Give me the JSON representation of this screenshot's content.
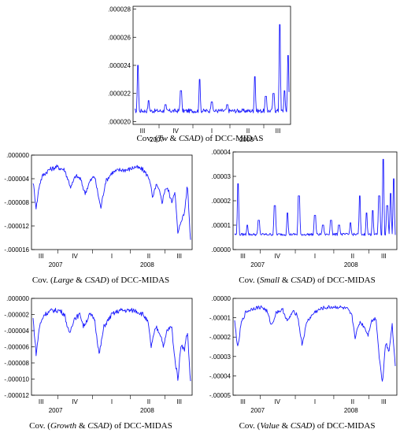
{
  "chart_data": [
    {
      "type": "line",
      "caption_pre": "Cov. (",
      "caption_it1": "Tw",
      "caption_mid": " & ",
      "caption_it2": "CSAD",
      "caption_post": ") of DCC-MIDAS",
      "color": "#1a1aff",
      "ylim": [
        1.98e-05,
        2.82e-05
      ],
      "ytick_values": [
        2e-05,
        2.2e-05,
        2.4e-05,
        2.6e-05,
        2.8e-05
      ],
      "ytick_labels": [
        ".000020",
        ".000022",
        ".000024",
        ".000026",
        ".000028"
      ],
      "quarters": [
        "III",
        "IV",
        "I",
        "II",
        "III"
      ],
      "years": [
        "2007",
        "2008"
      ],
      "baseline": 2.07e-05,
      "noise": 3e-07,
      "spikes": [
        [
          0.02,
          2.4e-05
        ],
        [
          0.09,
          2.15e-05
        ],
        [
          0.2,
          2.12e-05
        ],
        [
          0.3,
          2.22e-05
        ],
        [
          0.42,
          2.3e-05
        ],
        [
          0.5,
          2.14e-05
        ],
        [
          0.6,
          2.12e-05
        ],
        [
          0.78,
          2.32e-05
        ],
        [
          0.85,
          2.18e-05
        ],
        [
          0.9,
          2.2e-05
        ],
        [
          0.94,
          2.69e-05
        ],
        [
          0.97,
          2.22e-05
        ],
        [
          0.995,
          2.47e-05
        ]
      ]
    },
    {
      "type": "line",
      "caption_pre": "Cov. (",
      "caption_it1": "Large",
      "caption_mid": " & ",
      "caption_it2": "CSAD",
      "caption_post": ") of DCC-MIDAS",
      "color": "#1a1aff",
      "ylim": [
        -1.6e-05,
        0.0
      ],
      "ytick_values": [
        0.0,
        -4e-06,
        -8e-06,
        -1.2e-05,
        -1.6e-05
      ],
      "ytick_labels": [
        ".000000",
        "-.000004",
        "-.000008",
        "-.000012",
        "-.000016"
      ],
      "quarters": [
        "III",
        "IV",
        "I",
        "II",
        "III"
      ],
      "years": [
        "2007",
        "2008"
      ],
      "path": [
        [
          0.0,
          -4.5e-06
        ],
        [
          0.02,
          -9e-06
        ],
        [
          0.04,
          -5e-06
        ],
        [
          0.06,
          -3.5e-06
        ],
        [
          0.1,
          -2.5e-06
        ],
        [
          0.15,
          -2e-06
        ],
        [
          0.2,
          -2.5e-06
        ],
        [
          0.24,
          -5.5e-06
        ],
        [
          0.27,
          -3.5e-06
        ],
        [
          0.3,
          -4e-06
        ],
        [
          0.33,
          -6.5e-06
        ],
        [
          0.36,
          -4.5e-06
        ],
        [
          0.39,
          -3.5e-06
        ],
        [
          0.43,
          -9e-06
        ],
        [
          0.46,
          -4.5e-06
        ],
        [
          0.5,
          -3e-06
        ],
        [
          0.55,
          -2.5e-06
        ],
        [
          0.6,
          -2.5e-06
        ],
        [
          0.65,
          -2e-06
        ],
        [
          0.7,
          -2.5e-06
        ],
        [
          0.74,
          -4e-06
        ],
        [
          0.76,
          -7.5e-06
        ],
        [
          0.78,
          -5e-06
        ],
        [
          0.8,
          -6e-06
        ],
        [
          0.82,
          -8e-06
        ],
        [
          0.84,
          -5.5e-06
        ],
        [
          0.86,
          -6e-06
        ],
        [
          0.88,
          -8e-06
        ],
        [
          0.9,
          -6e-06
        ],
        [
          0.92,
          -1.35e-05
        ],
        [
          0.94,
          -1.1e-05
        ],
        [
          0.96,
          -1e-05
        ],
        [
          0.98,
          -5e-06
        ],
        [
          1.0,
          -1.45e-05
        ]
      ],
      "noise": 4e-07
    },
    {
      "type": "line",
      "caption_pre": "Cov. (",
      "caption_it1": "Small",
      "caption_mid": " & ",
      "caption_it2": "CSAD",
      "caption_post": ") of DCC-MIDAS",
      "color": "#1a1aff",
      "ylim": [
        0.0,
        4e-05
      ],
      "ytick_values": [
        0.0,
        1e-05,
        2e-05,
        3e-05,
        4e-05
      ],
      "ytick_labels": [
        ".00000",
        ".00001",
        ".00002",
        ".00003",
        ".00004"
      ],
      "quarters": [
        "III",
        "IV",
        "I",
        "II",
        "III"
      ],
      "years": [
        "2007",
        "2008"
      ],
      "baseline": 6e-06,
      "noise": 1e-06,
      "spikes": [
        [
          0.02,
          2.7e-05
        ],
        [
          0.08,
          1e-05
        ],
        [
          0.15,
          1.2e-05
        ],
        [
          0.25,
          1.8e-05
        ],
        [
          0.33,
          1.5e-05
        ],
        [
          0.4,
          2.2e-05
        ],
        [
          0.5,
          1.4e-05
        ],
        [
          0.55,
          1e-05
        ],
        [
          0.6,
          1.2e-05
        ],
        [
          0.65,
          1e-05
        ],
        [
          0.72,
          1.1e-05
        ],
        [
          0.78,
          2.2e-05
        ],
        [
          0.82,
          1.5e-05
        ],
        [
          0.86,
          1.6e-05
        ],
        [
          0.9,
          2.2e-05
        ],
        [
          0.925,
          3.7e-05
        ],
        [
          0.95,
          1.8e-05
        ],
        [
          0.97,
          2.3e-05
        ],
        [
          0.99,
          2.9e-05
        ]
      ]
    },
    {
      "type": "line",
      "caption_pre": "Cov. (",
      "caption_it1": "Growth",
      "caption_mid": " & ",
      "caption_it2": "CSAD",
      "caption_post": ") of DCC-MIDAS",
      "color": "#1a1aff",
      "ylim": [
        -1.2e-05,
        0.0
      ],
      "ytick_values": [
        0.0,
        -2e-06,
        -4e-06,
        -6e-06,
        -8e-06,
        -1e-05,
        -1.2e-05
      ],
      "ytick_labels": [
        ".000000",
        "-.000002",
        "-.000004",
        "-.000006",
        "-.000008",
        "-.000010",
        "-.000012"
      ],
      "quarters": [
        "III",
        "IV",
        "I",
        "II",
        "III"
      ],
      "years": [
        "2007",
        "2008"
      ],
      "path": [
        [
          0.0,
          -2.5e-06
        ],
        [
          0.02,
          -7e-06
        ],
        [
          0.04,
          -3.5e-06
        ],
        [
          0.07,
          -2e-06
        ],
        [
          0.12,
          -1.5e-06
        ],
        [
          0.17,
          -1.5e-06
        ],
        [
          0.2,
          -2e-06
        ],
        [
          0.23,
          -4.5e-06
        ],
        [
          0.26,
          -2.5e-06
        ],
        [
          0.3,
          -2e-06
        ],
        [
          0.32,
          -3.5e-06
        ],
        [
          0.36,
          -2e-06
        ],
        [
          0.39,
          -2.5e-06
        ],
        [
          0.42,
          -7e-06
        ],
        [
          0.45,
          -3.5e-06
        ],
        [
          0.5,
          -2e-06
        ],
        [
          0.55,
          -1.5e-06
        ],
        [
          0.6,
          -1.5e-06
        ],
        [
          0.65,
          -1.5e-06
        ],
        [
          0.7,
          -2e-06
        ],
        [
          0.73,
          -3e-06
        ],
        [
          0.75,
          -6e-06
        ],
        [
          0.78,
          -3.5e-06
        ],
        [
          0.81,
          -4.5e-06
        ],
        [
          0.83,
          -6e-06
        ],
        [
          0.85,
          -4e-06
        ],
        [
          0.88,
          -3.5e-06
        ],
        [
          0.9,
          -7.5e-06
        ],
        [
          0.92,
          -1e-05
        ],
        [
          0.94,
          -5.5e-06
        ],
        [
          0.96,
          -6.5e-06
        ],
        [
          0.98,
          -4e-06
        ],
        [
          1.0,
          -1.05e-05
        ]
      ],
      "noise": 3e-07
    },
    {
      "type": "line",
      "caption_pre": "Cov. (",
      "caption_it1": "Value",
      "caption_mid": " & ",
      "caption_it2": "CSAD",
      "caption_post": ") of DCC-MIDAS",
      "color": "#1a1aff",
      "ylim": [
        -5e-05,
        0.0
      ],
      "ytick_values": [
        0.0,
        -1e-05,
        -2e-05,
        -3e-05,
        -4e-05,
        -5e-05
      ],
      "ytick_labels": [
        ".00000",
        "-.00001",
        "-.00002",
        "-.00003",
        "-.00004",
        "-.00005"
      ],
      "quarters": [
        "III",
        "IV",
        "I",
        "II",
        "III"
      ],
      "years": [
        "2007",
        "2008"
      ],
      "path": [
        [
          0.0,
          -1.2e-05
        ],
        [
          0.02,
          -2.6e-05
        ],
        [
          0.04,
          -1.3e-05
        ],
        [
          0.07,
          -7e-06
        ],
        [
          0.12,
          -5e-06
        ],
        [
          0.17,
          -4.5e-06
        ],
        [
          0.2,
          -6.5e-06
        ],
        [
          0.23,
          -1.4e-05
        ],
        [
          0.26,
          -7e-06
        ],
        [
          0.3,
          -6e-06
        ],
        [
          0.33,
          -1.2e-05
        ],
        [
          0.36,
          -7e-06
        ],
        [
          0.39,
          -8e-06
        ],
        [
          0.42,
          -2.4e-05
        ],
        [
          0.45,
          -1.2e-05
        ],
        [
          0.5,
          -7e-06
        ],
        [
          0.55,
          -5e-06
        ],
        [
          0.6,
          -4.5e-06
        ],
        [
          0.65,
          -4.5e-06
        ],
        [
          0.7,
          -5.5e-06
        ],
        [
          0.73,
          -9e-06
        ],
        [
          0.75,
          -2e-05
        ],
        [
          0.78,
          -1.2e-05
        ],
        [
          0.81,
          -1.5e-05
        ],
        [
          0.83,
          -1.9e-05
        ],
        [
          0.85,
          -1.2e-05
        ],
        [
          0.88,
          -1e-05
        ],
        [
          0.9,
          -3e-05
        ],
        [
          0.92,
          -4.4e-05
        ],
        [
          0.94,
          -2.2e-05
        ],
        [
          0.96,
          -2.8e-05
        ],
        [
          0.98,
          -1.3e-05
        ],
        [
          1.0,
          -3.5e-05
        ]
      ],
      "noise": 1e-06
    }
  ]
}
